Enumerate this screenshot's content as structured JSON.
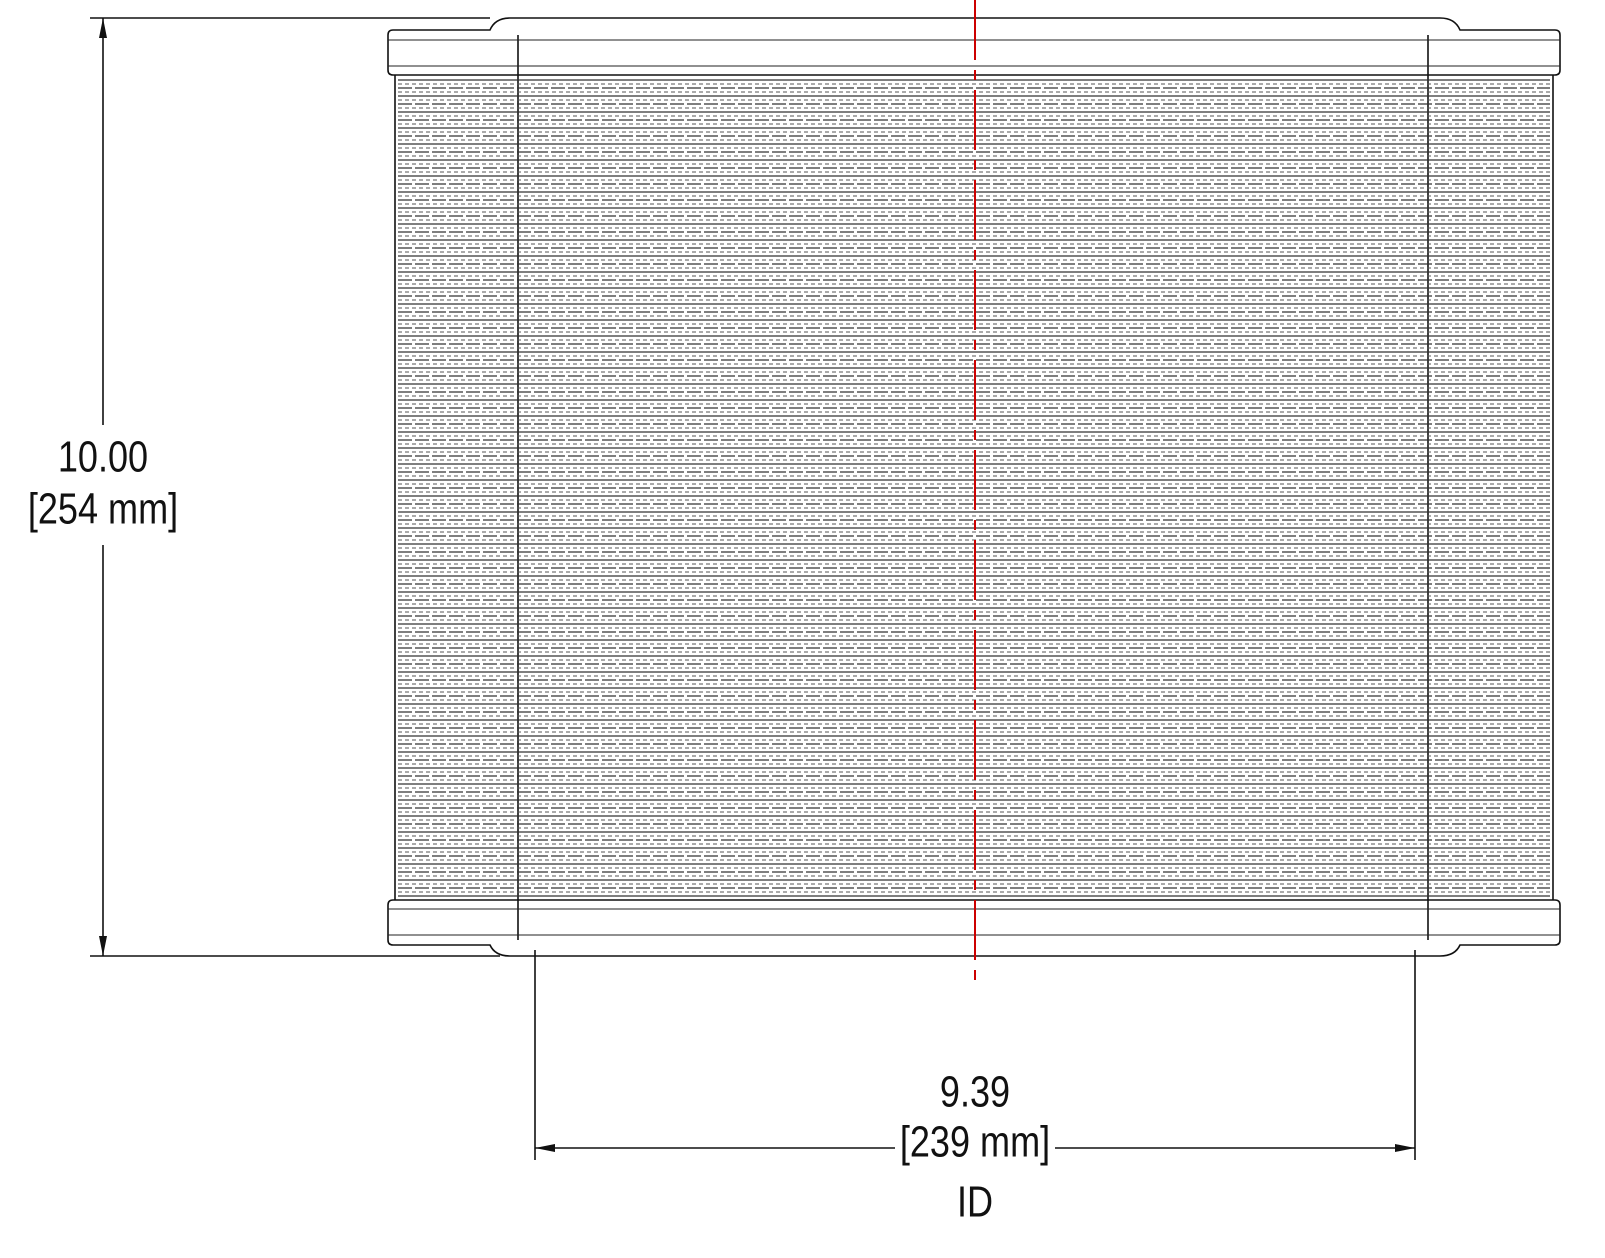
{
  "height_dimension": {
    "value": "10.00",
    "metric": "[254 mm]"
  },
  "width_dimension": {
    "value": "9.39",
    "metric": "[239 mm]",
    "note": "ID"
  }
}
